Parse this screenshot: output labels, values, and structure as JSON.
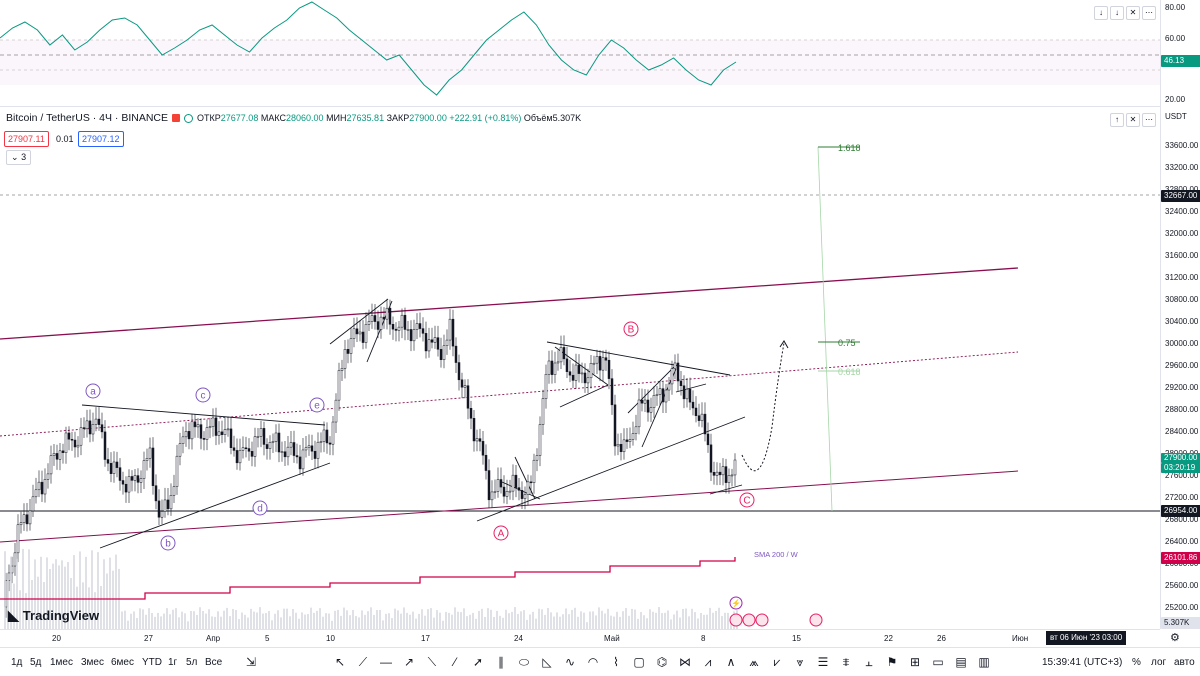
{
  "rsi": {
    "scale": [
      "80.00",
      "60.00",
      "40.00",
      "20.00"
    ],
    "current_value": "46.13",
    "line_color": "#089981",
    "controls": [
      "↓",
      "↓",
      "✕"
    ],
    "more_icon": "⋯"
  },
  "legend": {
    "title": "Bitcoin / TetherUS · 4Ч · BINANCE",
    "o_label": "ОТКР",
    "o": "27677.08",
    "h_label": "МАКС",
    "h": "28060.00",
    "l_label": "МИН",
    "l": "27635.81",
    "c_label": "ЗАКР",
    "c": "27900.00",
    "change": "+222.91 (+0.81%)",
    "vol_label": "Объём",
    "vol": "5.307K",
    "bid": "27907.11",
    "spread": "0.01",
    "ask": "27907.12",
    "indicators_count": "3"
  },
  "main_controls": [
    "↑",
    "✕",
    "⋯"
  ],
  "price_scale": {
    "currency": "USDT",
    "ticks": [
      "33600.00",
      "33200.00",
      "32800.00",
      "32400.00",
      "32000.00",
      "31600.00",
      "31200.00",
      "30800.00",
      "30400.00",
      "30000.00",
      "29600.00",
      "29200.00",
      "28800.00",
      "28400.00",
      "28000.00",
      "27600.00",
      "27200.00",
      "26800.00",
      "26400.00",
      "26000.00",
      "25600.00",
      "25200.00"
    ],
    "labels": {
      "hline_upper": "32667.00",
      "last_price": "27900.00",
      "countdown": "03:20:19",
      "hline_lower": "26954.00",
      "sma": "26101.86",
      "volume": "5.307K"
    },
    "colors": {
      "last_price": "#089981",
      "sma": "#d1004b",
      "dark": "#131722"
    }
  },
  "fib": {
    "levels": [
      {
        "value": "1.618",
        "color": "#2e7d32"
      },
      {
        "value": "0.75",
        "color": "#2e7d32"
      },
      {
        "value": "0.618",
        "color": "#a5d6a7"
      }
    ]
  },
  "waves": {
    "purple": [
      "a",
      "b",
      "c",
      "d",
      "e"
    ],
    "red": [
      "A",
      "B",
      "C"
    ],
    "purple_color": "#7e57c2",
    "red_color": "#e91e63"
  },
  "sma_label": "SMA 200 / W",
  "watermark": "TradingView",
  "time_axis": {
    "labels": [
      "20",
      "27",
      "Апр",
      "5",
      "10",
      "17",
      "24",
      "Май",
      "8",
      "15",
      "22",
      "26",
      "Июн"
    ],
    "crosshair": "вт 06 Июн '23  03:00"
  },
  "bottom": {
    "timeframes": [
      "1д",
      "5д",
      "1мес",
      "3мес",
      "6мес",
      "YTD",
      "1г",
      "5л",
      "Все"
    ],
    "clock": "15:39:41 (UTC+3)",
    "percent": "%",
    "log": "лог",
    "auto": "авто"
  }
}
